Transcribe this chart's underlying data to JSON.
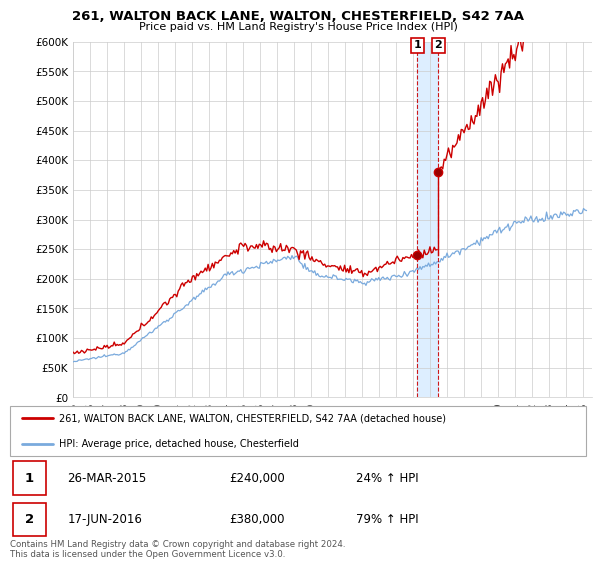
{
  "title_line1": "261, WALTON BACK LANE, WALTON, CHESTERFIELD, S42 7AA",
  "title_line2": "Price paid vs. HM Land Registry's House Price Index (HPI)",
  "ylim": [
    0,
    600000
  ],
  "yticks": [
    0,
    50000,
    100000,
    150000,
    200000,
    250000,
    300000,
    350000,
    400000,
    450000,
    500000,
    550000,
    600000
  ],
  "ytick_labels": [
    "£0",
    "£50K",
    "£100K",
    "£150K",
    "£200K",
    "£250K",
    "£300K",
    "£350K",
    "£400K",
    "£450K",
    "£500K",
    "£550K",
    "£600K"
  ],
  "xlim_start": 1995.0,
  "xlim_end": 2025.5,
  "transaction1_x": 2015.23,
  "transaction1_y": 240000,
  "transaction1_label": "1",
  "transaction1_date": "26-MAR-2015",
  "transaction1_price": "£240,000",
  "transaction1_hpi": "24% ↑ HPI",
  "transaction2_x": 2016.46,
  "transaction2_y": 380000,
  "transaction2_label": "2",
  "transaction2_date": "17-JUN-2016",
  "transaction2_price": "£380,000",
  "transaction2_hpi": "79% ↑ HPI",
  "legend_line1": "261, WALTON BACK LANE, WALTON, CHESTERFIELD, S42 7AA (detached house)",
  "legend_line2": "HPI: Average price, detached house, Chesterfield",
  "footer": "Contains HM Land Registry data © Crown copyright and database right 2024.\nThis data is licensed under the Open Government Licence v3.0.",
  "hpi_color": "#7aaadd",
  "price_color": "#cc0000",
  "dashed_color": "#cc0000",
  "shade_color": "#ddeeff"
}
